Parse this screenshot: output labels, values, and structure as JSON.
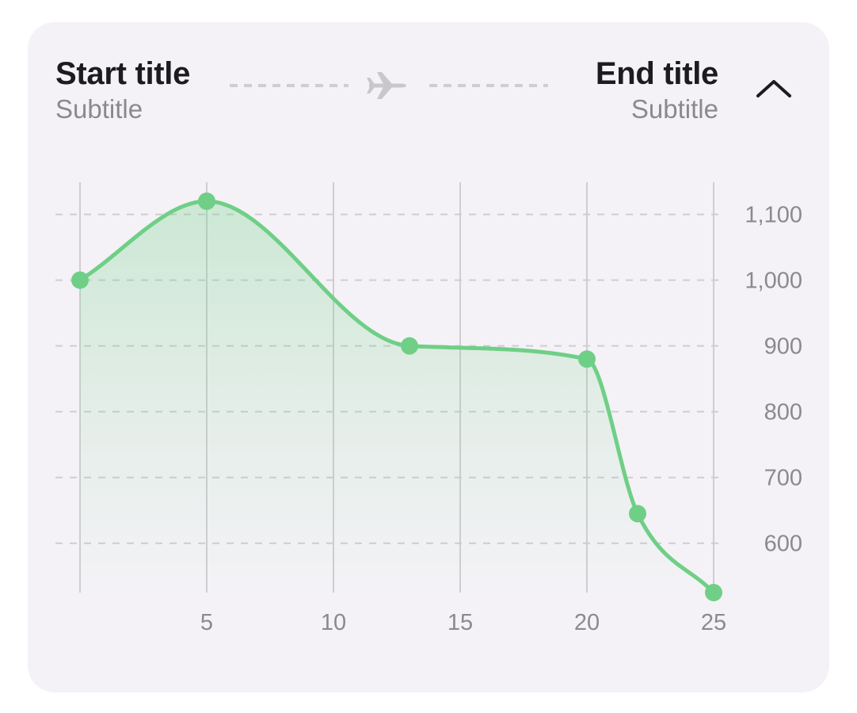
{
  "header": {
    "start_title": "Start title",
    "start_subtitle": "Subtitle",
    "end_title": "End title",
    "end_subtitle": "Subtitle",
    "route_icon": "airplane-icon",
    "collapse_icon": "chevron-up-icon"
  },
  "colors": {
    "card_bg": "#f4f2f6",
    "line": "#6fcf86",
    "point": "#6fcf86",
    "grid": "#cfcdd2",
    "tick_text": "#8a8a8e"
  },
  "chart_data": {
    "type": "area",
    "x": [
      0,
      5,
      13,
      20,
      22,
      25
    ],
    "y": [
      1000,
      1120,
      900,
      880,
      645,
      525
    ],
    "xlim": [
      0,
      25
    ],
    "ylim": [
      525,
      1120
    ],
    "x_ticks": [
      5,
      10,
      15,
      20,
      25
    ],
    "x_tick_labels": [
      "5",
      "10",
      "15",
      "20",
      "25"
    ],
    "y_ticks": [
      600,
      700,
      800,
      900,
      1000,
      1100
    ],
    "y_tick_labels": [
      "600",
      "700",
      "800",
      "900",
      "1,000",
      "1,100"
    ],
    "vertical_grid": [
      0,
      5,
      10,
      15,
      20,
      25
    ],
    "grid": true,
    "smooth": true,
    "y_axis_position": "right"
  }
}
